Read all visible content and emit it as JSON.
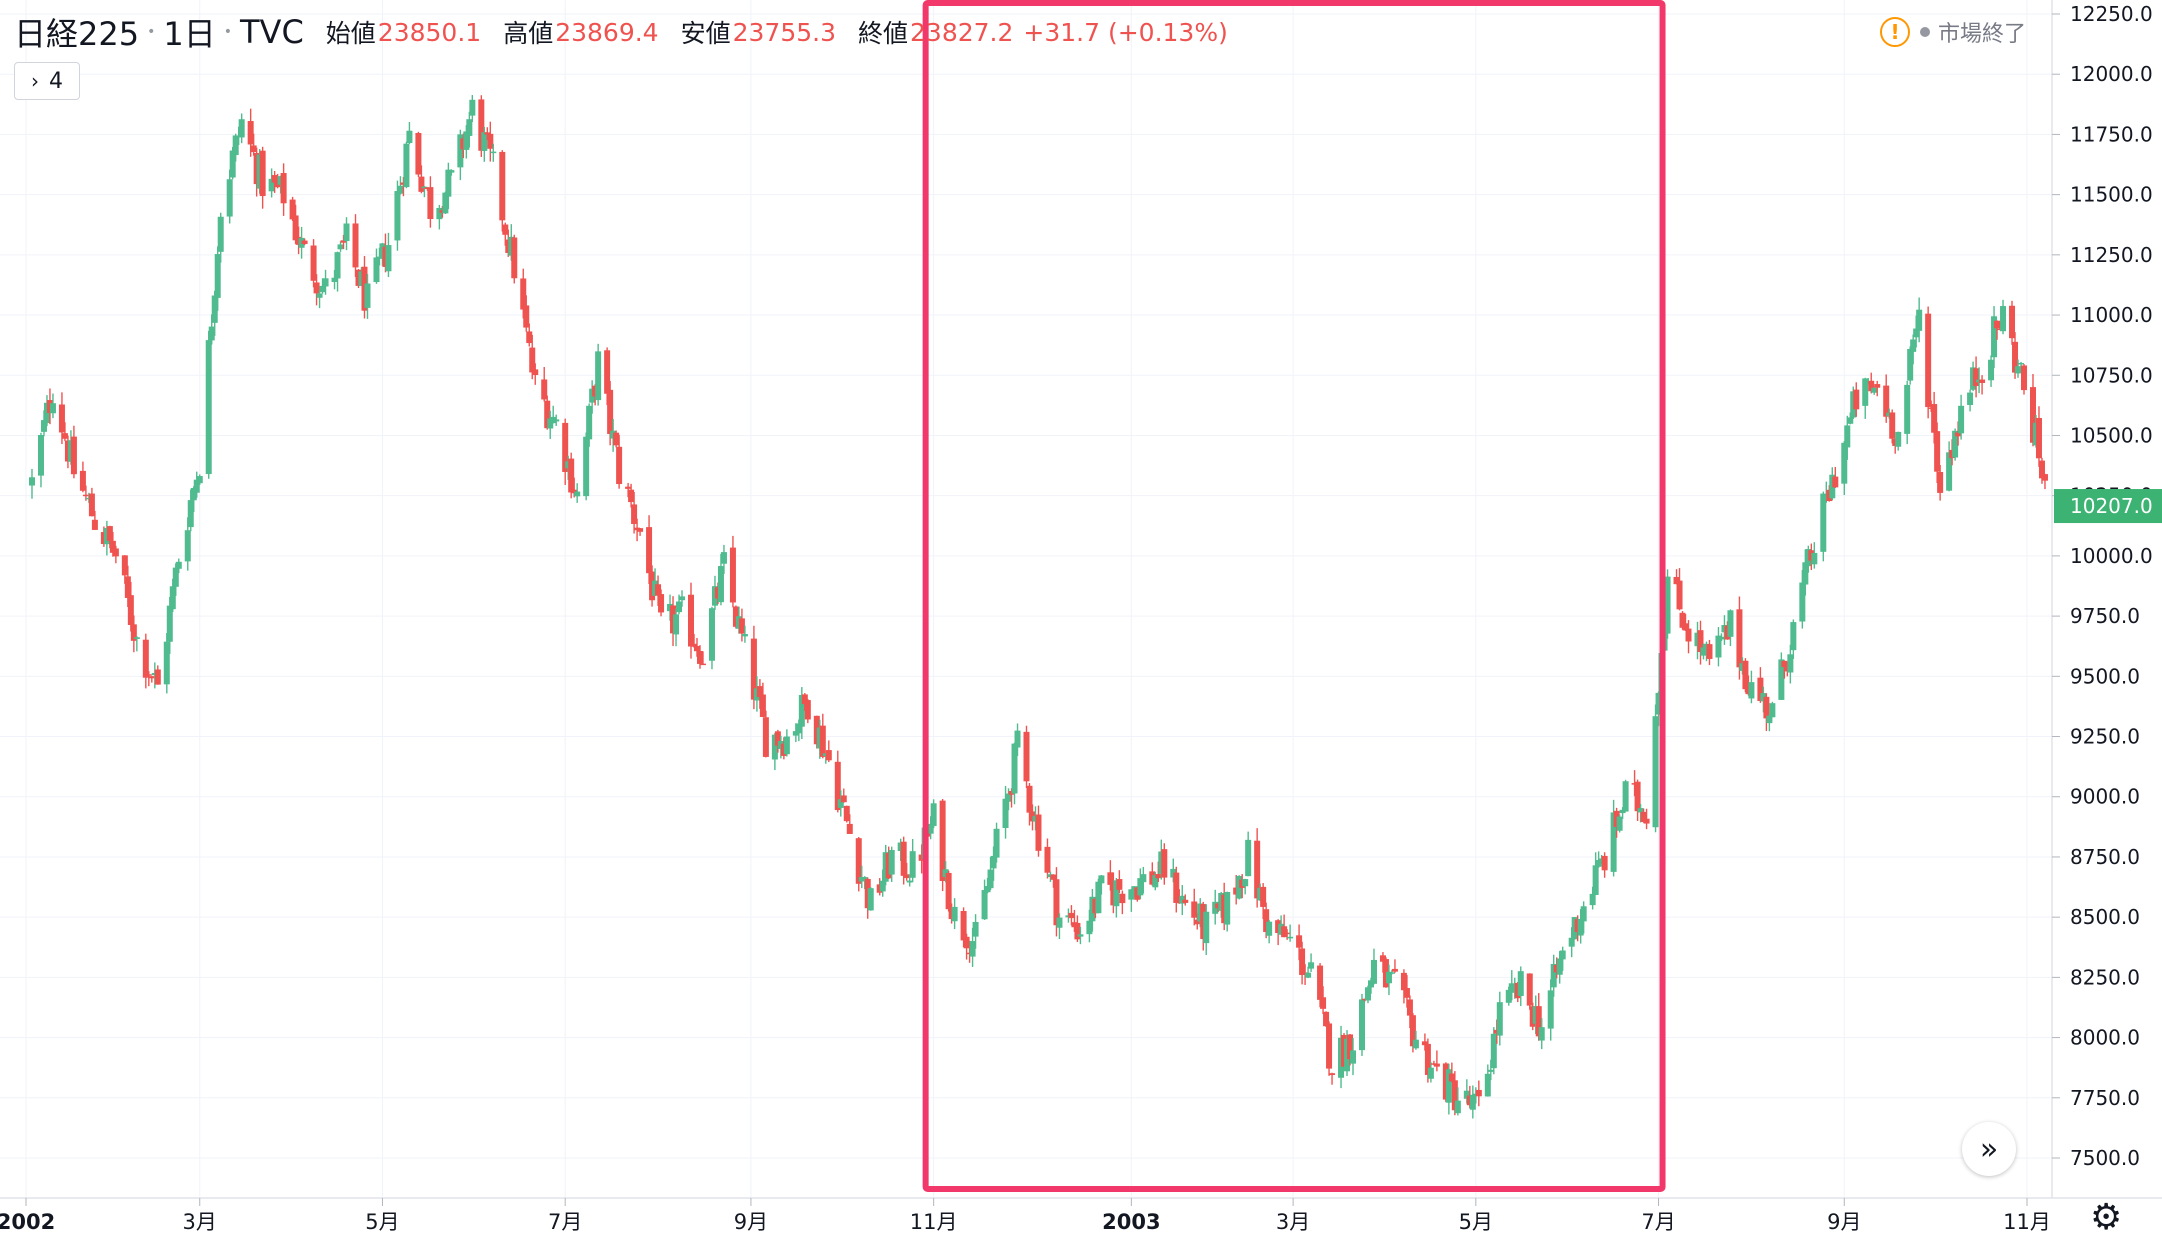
{
  "legend": {
    "symbol": "日経225",
    "sep": "•",
    "timeframe": "1日",
    "exchange": "TVC",
    "open_label": "始値",
    "open_value": "23850.1",
    "high_label": "高値",
    "high_value": "23869.4",
    "low_label": "安値",
    "low_value": "23755.3",
    "close_label": "終値",
    "close_value": "23827.2",
    "change": "+31.7 (+0.13%)"
  },
  "indicators": {
    "chevron": "›",
    "count": "4"
  },
  "market_status": {
    "warning_icon": "!",
    "text": "市場終了"
  },
  "scroll_button": {
    "icon": "»"
  },
  "settings_icon": "⚙",
  "colors": {
    "up": "#26a69a",
    "up_body": "#4fbb8e",
    "down": "#ef5350",
    "highlight_box": "#f2386b",
    "price_label_bg": "#3cb372"
  },
  "chart_data": {
    "type": "candlestick",
    "title": "",
    "xlabel": "",
    "ylabel": "",
    "ylim": [
      7360,
      12300
    ],
    "y_ticks": [
      "12250.0",
      "12000.0",
      "11750.0",
      "11500.0",
      "11250.0",
      "11000.0",
      "10750.0",
      "10500.0",
      "10250.0",
      "10000.0",
      "9750.0",
      "9500.0",
      "9250.0",
      "9000.0",
      "8750.0",
      "8500.0",
      "8250.0",
      "8000.0",
      "7750.0",
      "7500.0"
    ],
    "x_labels": [
      {
        "date": "2002-01-02",
        "label": "2002"
      },
      {
        "date": "2002-03-01",
        "label": "3月"
      },
      {
        "date": "2002-05-01",
        "label": "5月"
      },
      {
        "date": "2002-07-01",
        "label": "7月"
      },
      {
        "date": "2002-09-01",
        "label": "9月"
      },
      {
        "date": "2002-11-01",
        "label": "11月"
      },
      {
        "date": "2003-01-06",
        "label": "2003"
      },
      {
        "date": "2003-03-01",
        "label": "3月"
      },
      {
        "date": "2003-05-01",
        "label": "5月"
      },
      {
        "date": "2003-07-01",
        "label": "7月"
      },
      {
        "date": "2003-09-01",
        "label": "9月"
      },
      {
        "date": "2003-11-01",
        "label": "11月"
      }
    ],
    "last_price": "10207.0",
    "highlight_range": [
      "2002-11-01",
      "2003-07-01"
    ],
    "series_close": [
      [
        "2002-01-04",
        10300
      ],
      [
        "2002-01-11",
        10700
      ],
      [
        "2002-01-18",
        10350
      ],
      [
        "2002-01-25",
        10150
      ],
      [
        "2002-02-01",
        10000
      ],
      [
        "2002-02-08",
        9650
      ],
      [
        "2002-02-15",
        9450
      ],
      [
        "2002-02-22",
        10000
      ],
      [
        "2002-03-01",
        10400
      ],
      [
        "2002-03-08",
        11450
      ],
      [
        "2002-03-15",
        11800
      ],
      [
        "2002-03-22",
        11550
      ],
      [
        "2002-03-29",
        11500
      ],
      [
        "2002-04-05",
        11250
      ],
      [
        "2002-04-12",
        11100
      ],
      [
        "2002-04-19",
        11300
      ],
      [
        "2002-04-26",
        11050
      ],
      [
        "2002-05-03",
        11300
      ],
      [
        "2002-05-10",
        11750
      ],
      [
        "2002-05-17",
        11450
      ],
      [
        "2002-05-24",
        11550
      ],
      [
        "2002-05-31",
        11850
      ],
      [
        "2002-06-07",
        11600
      ],
      [
        "2002-06-14",
        11200
      ],
      [
        "2002-06-21",
        10700
      ],
      [
        "2002-06-28",
        10550
      ],
      [
        "2002-07-05",
        10250
      ],
      [
        "2002-07-12",
        10800
      ],
      [
        "2002-07-19",
        10350
      ],
      [
        "2002-07-26",
        10100
      ],
      [
        "2002-08-02",
        9700
      ],
      [
        "2002-08-09",
        9750
      ],
      [
        "2002-08-16",
        9600
      ],
      [
        "2002-08-23",
        9950
      ],
      [
        "2002-08-30",
        9600
      ],
      [
        "2002-09-06",
        9250
      ],
      [
        "2002-09-13",
        9250
      ],
      [
        "2002-09-20",
        9400
      ],
      [
        "2002-09-27",
        9150
      ],
      [
        "2002-10-04",
        8850
      ],
      [
        "2002-10-11",
        8550
      ],
      [
        "2002-10-18",
        8750
      ],
      [
        "2002-10-25",
        8700
      ],
      [
        "2002-11-01",
        8900
      ],
      [
        "2002-11-08",
        8500
      ],
      [
        "2002-11-15",
        8400
      ],
      [
        "2002-11-22",
        8800
      ],
      [
        "2002-11-29",
        9200
      ],
      [
        "2002-12-06",
        8850
      ],
      [
        "2002-12-13",
        8500
      ],
      [
        "2002-12-20",
        8450
      ],
      [
        "2002-12-27",
        8600
      ],
      [
        "2003-01-10",
        8650
      ],
      [
        "2003-01-17",
        8700
      ],
      [
        "2003-01-24",
        8550
      ],
      [
        "2003-01-31",
        8450
      ],
      [
        "2003-02-07",
        8550
      ],
      [
        "2003-02-14",
        8750
      ],
      [
        "2003-02-21",
        8450
      ],
      [
        "2003-02-28",
        8400
      ],
      [
        "2003-03-07",
        8250
      ],
      [
        "2003-03-14",
        7900
      ],
      [
        "2003-03-21",
        8000
      ],
      [
        "2003-03-28",
        8300
      ],
      [
        "2003-04-04",
        8200
      ],
      [
        "2003-04-11",
        8000
      ],
      [
        "2003-04-18",
        7850
      ],
      [
        "2003-04-25",
        7750
      ],
      [
        "2003-05-02",
        7700
      ],
      [
        "2003-05-09",
        8100
      ],
      [
        "2003-05-16",
        8200
      ],
      [
        "2003-05-23",
        8050
      ],
      [
        "2003-05-30",
        8350
      ],
      [
        "2003-06-06",
        8550
      ],
      [
        "2003-06-13",
        8750
      ],
      [
        "2003-06-20",
        9000
      ],
      [
        "2003-06-27",
        8950
      ],
      [
        "2003-07-04",
        9900
      ],
      [
        "2003-07-11",
        9700
      ],
      [
        "2003-07-18",
        9550
      ],
      [
        "2003-07-25",
        9700
      ],
      [
        "2003-08-01",
        9450
      ],
      [
        "2003-08-08",
        9350
      ],
      [
        "2003-08-15",
        9700
      ],
      [
        "2003-08-22",
        10050
      ],
      [
        "2003-08-29",
        10350
      ],
      [
        "2003-09-05",
        10650
      ],
      [
        "2003-09-12",
        10700
      ],
      [
        "2003-09-19",
        10500
      ],
      [
        "2003-09-26",
        11000
      ],
      [
        "2003-10-03",
        10300
      ],
      [
        "2003-10-10",
        10600
      ],
      [
        "2003-10-17",
        10800
      ],
      [
        "2003-10-24",
        11000
      ],
      [
        "2003-10-31",
        10700
      ],
      [
        "2003-11-07",
        10300
      ]
    ]
  }
}
